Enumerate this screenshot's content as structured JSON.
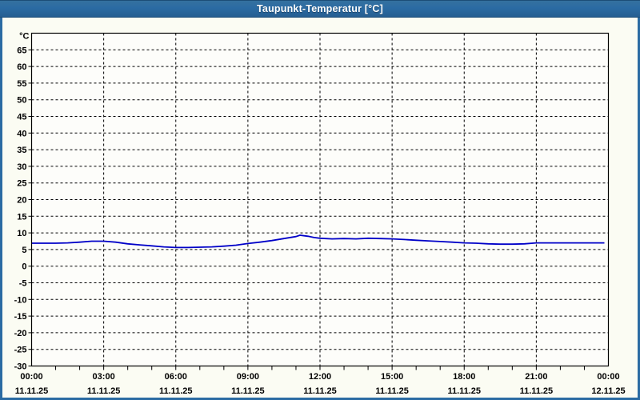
{
  "window": {
    "title": "Taupunkt-Temperatur [°C]",
    "colors": {
      "titlebar": "#2b6ba3",
      "titlebar_text": "#ffffff",
      "window_border": "#2b6ba3",
      "background": "#fbfcf3",
      "plot_background": "#fdfdfa",
      "grid": "#000000",
      "axis": "#000000",
      "line": "#0000c8"
    }
  },
  "chart_data": {
    "type": "line",
    "title": "Taupunkt-Temperatur [°C]",
    "ylabel_unit": "°C",
    "ylim": [
      -30,
      70
    ],
    "ytick_step": 5,
    "yticks": [
      65,
      60,
      55,
      50,
      45,
      40,
      35,
      30,
      25,
      20,
      15,
      10,
      5,
      0,
      -5,
      -10,
      -15,
      -20,
      -25,
      -30
    ],
    "grid": "dashed",
    "x_hours": [
      0,
      24
    ],
    "minor_xtick_every_hours": 1,
    "xticks": [
      {
        "hour": 0,
        "time": "00:00",
        "date": "11.11.25"
      },
      {
        "hour": 3,
        "time": "03:00",
        "date": "11.11.25"
      },
      {
        "hour": 6,
        "time": "06:00",
        "date": "11.11.25"
      },
      {
        "hour": 9,
        "time": "09:00",
        "date": "11.11.25"
      },
      {
        "hour": 12,
        "time": "12:00",
        "date": "11.11.25"
      },
      {
        "hour": 15,
        "time": "15:00",
        "date": "11.11.25"
      },
      {
        "hour": 18,
        "time": "18:00",
        "date": "11.11.25"
      },
      {
        "hour": 21,
        "time": "21:00",
        "date": "11.11.25"
      },
      {
        "hour": 24,
        "time": "00:00",
        "date": "12.11.25"
      }
    ],
    "legend": "off",
    "series": [
      {
        "name": "Taupunkt-Temperatur",
        "color": "#0000c8",
        "points": [
          [
            "00:00",
            6.9
          ],
          [
            "00:30",
            6.9
          ],
          [
            "01:00",
            6.9
          ],
          [
            "01:30",
            7.0
          ],
          [
            "02:00",
            7.2
          ],
          [
            "02:30",
            7.5
          ],
          [
            "03:00",
            7.5
          ],
          [
            "03:30",
            7.2
          ],
          [
            "04:00",
            6.7
          ],
          [
            "04:30",
            6.4
          ],
          [
            "05:00",
            6.1
          ],
          [
            "05:30",
            5.8
          ],
          [
            "06:00",
            5.6
          ],
          [
            "06:30",
            5.6
          ],
          [
            "07:00",
            5.7
          ],
          [
            "07:30",
            5.8
          ],
          [
            "08:00",
            6.0
          ],
          [
            "08:30",
            6.3
          ],
          [
            "09:00",
            6.8
          ],
          [
            "09:30",
            7.2
          ],
          [
            "10:00",
            7.7
          ],
          [
            "10:30",
            8.3
          ],
          [
            "11:00",
            8.9
          ],
          [
            "11:10",
            9.3
          ],
          [
            "11:30",
            9.0
          ],
          [
            "11:45",
            8.6
          ],
          [
            "12:00",
            8.4
          ],
          [
            "12:30",
            8.2
          ],
          [
            "13:00",
            8.3
          ],
          [
            "13:30",
            8.2
          ],
          [
            "14:00",
            8.4
          ],
          [
            "14:30",
            8.3
          ],
          [
            "15:00",
            8.2
          ],
          [
            "15:30",
            8.0
          ],
          [
            "16:00",
            7.8
          ],
          [
            "16:30",
            7.6
          ],
          [
            "17:00",
            7.4
          ],
          [
            "17:30",
            7.2
          ],
          [
            "18:00",
            7.0
          ],
          [
            "18:30",
            6.9
          ],
          [
            "19:00",
            6.7
          ],
          [
            "19:30",
            6.6
          ],
          [
            "20:00",
            6.6
          ],
          [
            "20:30",
            6.7
          ],
          [
            "21:00",
            7.0
          ],
          [
            "22:00",
            7.0
          ],
          [
            "23:00",
            7.0
          ],
          [
            "23:50",
            7.0
          ]
        ]
      }
    ]
  }
}
